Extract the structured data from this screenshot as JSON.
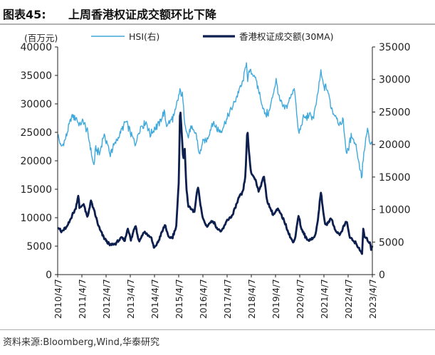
{
  "header": {
    "figure_number": "图表45:",
    "title": "上周香港权证成交额环比下降"
  },
  "footer": {
    "source": "资料来源:Bloomberg,Wind,华泰研究"
  },
  "chart_data": {
    "type": "line",
    "title": "上周香港权证成交额环比下降",
    "left_axis": {
      "unit_label": "(百万元)",
      "range": [
        0,
        40000
      ],
      "ticks": [
        0,
        5000,
        10000,
        15000,
        20000,
        25000,
        30000,
        35000,
        40000
      ],
      "tick_labels": [
        "0",
        "5000",
        "10000",
        "15000",
        "20000",
        "25000",
        "30000",
        "35000",
        "40000"
      ]
    },
    "right_axis": {
      "range": [
        0,
        35000
      ],
      "ticks": [
        0,
        5000,
        10000,
        15000,
        20000,
        25000,
        30000,
        35000
      ],
      "tick_labels": [
        "0",
        "5000",
        "10000",
        "15000",
        "20000",
        "25000",
        "30000",
        "35000"
      ]
    },
    "x_axis": {
      "range": [
        "2010-04-07",
        "2023-04-07"
      ],
      "tick_labels": [
        "2010/4/7",
        "2011/4/7",
        "2012/4/7",
        "2013/4/7",
        "2014/4/7",
        "2015/4/7",
        "2016/4/7",
        "2017/4/7",
        "2018/4/7",
        "2019/4/7",
        "2020/4/7",
        "2021/4/7",
        "2022/4/7",
        "2023/4/7"
      ]
    },
    "grid": false,
    "legend_placement": "top",
    "series": [
      {
        "name": "HSI(右)",
        "axis": "right",
        "color": "#3fa9dc",
        "points": [
          [
            "2010-04-07",
            21500
          ],
          [
            "2010-06-01",
            19500
          ],
          [
            "2010-08-01",
            20800
          ],
          [
            "2010-10-15",
            23500
          ],
          [
            "2010-11-15",
            24500
          ],
          [
            "2011-01-15",
            24000
          ],
          [
            "2011-03-01",
            23000
          ],
          [
            "2011-05-01",
            23500
          ],
          [
            "2011-07-01",
            22000
          ],
          [
            "2011-08-15",
            19500
          ],
          [
            "2011-10-04",
            16500
          ],
          [
            "2011-11-01",
            19500
          ],
          [
            "2012-01-01",
            18500
          ],
          [
            "2012-03-01",
            21500
          ],
          [
            "2012-05-01",
            20000
          ],
          [
            "2012-06-01",
            18500
          ],
          [
            "2012-08-01",
            19800
          ],
          [
            "2012-10-01",
            21000
          ],
          [
            "2013-01-01",
            23000
          ],
          [
            "2013-02-01",
            23500
          ],
          [
            "2013-04-01",
            22000
          ],
          [
            "2013-06-20",
            20000
          ],
          [
            "2013-09-01",
            22500
          ],
          [
            "2013-12-01",
            23500
          ],
          [
            "2014-02-01",
            21500
          ],
          [
            "2014-04-07",
            22500
          ],
          [
            "2014-06-01",
            23000
          ],
          [
            "2014-09-01",
            25000
          ],
          [
            "2014-10-01",
            23000
          ],
          [
            "2014-12-01",
            23500
          ],
          [
            "2015-02-01",
            24500
          ],
          [
            "2015-04-28",
            28400
          ],
          [
            "2015-06-01",
            27500
          ],
          [
            "2015-07-08",
            23500
          ],
          [
            "2015-08-24",
            21000
          ],
          [
            "2015-10-01",
            22500
          ],
          [
            "2016-01-01",
            21500
          ],
          [
            "2016-02-12",
            18300
          ],
          [
            "2016-04-07",
            20500
          ],
          [
            "2016-06-01",
            20500
          ],
          [
            "2016-09-01",
            23500
          ],
          [
            "2016-11-01",
            22500
          ],
          [
            "2017-01-01",
            22000
          ],
          [
            "2017-04-07",
            24000
          ],
          [
            "2017-07-01",
            25800
          ],
          [
            "2017-10-01",
            28200
          ],
          [
            "2017-12-01",
            29500
          ],
          [
            "2018-01-26",
            33100
          ],
          [
            "2018-02-09",
            29500
          ],
          [
            "2018-03-15",
            31500
          ],
          [
            "2018-06-01",
            30500
          ],
          [
            "2018-08-01",
            28000
          ],
          [
            "2018-10-30",
            24600
          ],
          [
            "2019-01-03",
            25000
          ],
          [
            "2019-04-15",
            30000
          ],
          [
            "2019-06-01",
            27000
          ],
          [
            "2019-08-15",
            25500
          ],
          [
            "2019-10-01",
            26000
          ],
          [
            "2020-01-15",
            28800
          ],
          [
            "2020-03-19",
            21700
          ],
          [
            "2020-06-01",
            24000
          ],
          [
            "2020-09-01",
            24500
          ],
          [
            "2020-11-01",
            24200
          ],
          [
            "2020-12-15",
            26500
          ],
          [
            "2021-02-17",
            31000
          ],
          [
            "2021-04-01",
            29000
          ],
          [
            "2021-06-01",
            28500
          ],
          [
            "2021-07-28",
            25500
          ],
          [
            "2021-10-01",
            24500
          ],
          [
            "2021-12-20",
            22800
          ],
          [
            "2022-01-15",
            24200
          ],
          [
            "2022-03-15",
            18500
          ],
          [
            "2022-06-01",
            21500
          ],
          [
            "2022-08-01",
            20000
          ],
          [
            "2022-10-31",
            14700
          ],
          [
            "2022-11-15",
            17500
          ],
          [
            "2023-01-27",
            22600
          ],
          [
            "2023-03-01",
            20000
          ],
          [
            "2023-04-07",
            20300
          ]
        ]
      },
      {
        "name": "香港权证成交额(30MA)",
        "axis": "left",
        "color": "#0d1f4e",
        "points": [
          [
            "2010-04-07",
            8500
          ],
          [
            "2010-06-01",
            7500
          ],
          [
            "2010-09-01",
            8500
          ],
          [
            "2010-11-15",
            10500
          ],
          [
            "2011-01-01",
            11500
          ],
          [
            "2011-02-15",
            14200
          ],
          [
            "2011-03-01",
            11500
          ],
          [
            "2011-05-01",
            12500
          ],
          [
            "2011-07-01",
            10000
          ],
          [
            "2011-08-20",
            13000
          ],
          [
            "2011-10-15",
            11000
          ],
          [
            "2011-12-01",
            9000
          ],
          [
            "2012-01-01",
            8000
          ],
          [
            "2012-03-01",
            6500
          ],
          [
            "2012-06-01",
            5200
          ],
          [
            "2012-09-01",
            5500
          ],
          [
            "2012-12-01",
            6500
          ],
          [
            "2013-01-15",
            6000
          ],
          [
            "2013-03-01",
            8300
          ],
          [
            "2013-04-15",
            6000
          ],
          [
            "2013-06-25",
            8800
          ],
          [
            "2013-08-15",
            5800
          ],
          [
            "2013-11-01",
            7500
          ],
          [
            "2014-02-15",
            6500
          ],
          [
            "2014-04-01",
            4600
          ],
          [
            "2014-06-01",
            5800
          ],
          [
            "2014-09-15",
            8800
          ],
          [
            "2014-11-01",
            6500
          ],
          [
            "2015-01-01",
            6500
          ],
          [
            "2015-03-01",
            8500
          ],
          [
            "2015-04-10",
            16500
          ],
          [
            "2015-04-28",
            30000
          ],
          [
            "2015-05-15",
            26500
          ],
          [
            "2015-06-15",
            20000
          ],
          [
            "2015-07-08",
            22300
          ],
          [
            "2015-08-01",
            15000
          ],
          [
            "2015-09-01",
            12000
          ],
          [
            "2015-12-01",
            11000
          ],
          [
            "2016-01-21",
            15500
          ],
          [
            "2016-04-01",
            10000
          ],
          [
            "2016-06-01",
            8500
          ],
          [
            "2016-09-01",
            9500
          ],
          [
            "2016-11-15",
            8000
          ],
          [
            "2017-01-15",
            7500
          ],
          [
            "2017-04-07",
            9500
          ],
          [
            "2017-07-01",
            10500
          ],
          [
            "2017-10-01",
            13500
          ],
          [
            "2017-12-01",
            14500
          ],
          [
            "2018-01-10",
            17500
          ],
          [
            "2018-02-06",
            26000
          ],
          [
            "2018-02-25",
            22000
          ],
          [
            "2018-04-01",
            18000
          ],
          [
            "2018-06-15",
            16500
          ],
          [
            "2018-08-01",
            14500
          ],
          [
            "2018-10-11",
            17500
          ],
          [
            "2018-12-01",
            13000
          ],
          [
            "2019-03-01",
            10500
          ],
          [
            "2019-05-15",
            11500
          ],
          [
            "2019-08-15",
            9500
          ],
          [
            "2019-11-01",
            7000
          ],
          [
            "2020-01-01",
            5500
          ],
          [
            "2020-02-01",
            6800
          ],
          [
            "2020-03-19",
            10500
          ],
          [
            "2020-05-01",
            8000
          ],
          [
            "2020-08-01",
            6000
          ],
          [
            "2020-11-15",
            6500
          ],
          [
            "2021-01-01",
            9000
          ],
          [
            "2021-02-18",
            14800
          ],
          [
            "2021-03-15",
            12000
          ],
          [
            "2021-05-01",
            8500
          ],
          [
            "2021-07-28",
            10000
          ],
          [
            "2021-09-15",
            8000
          ],
          [
            "2021-12-01",
            7000
          ],
          [
            "2022-03-15",
            9500
          ],
          [
            "2022-05-01",
            6500
          ],
          [
            "2022-08-01",
            5500
          ],
          [
            "2022-10-20",
            4000
          ],
          [
            "2022-11-01",
            3000
          ],
          [
            "2022-11-20",
            8000
          ],
          [
            "2022-12-15",
            6500
          ],
          [
            "2023-02-01",
            6000
          ],
          [
            "2023-03-01",
            5500
          ],
          [
            "2023-03-20",
            4500
          ],
          [
            "2023-04-07",
            5200
          ]
        ]
      }
    ]
  }
}
